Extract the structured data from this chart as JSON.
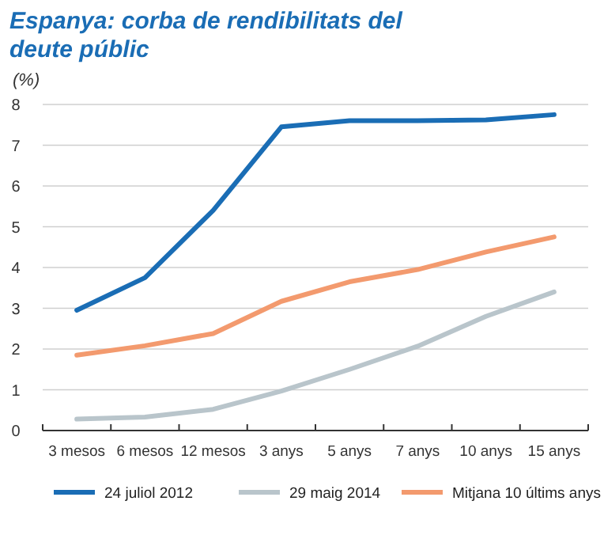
{
  "chart_data": {
    "type": "line",
    "title": "Espanya: corba de rendibilitats del deute públic",
    "ylabel": "(%)",
    "categories": [
      "3 mesos",
      "6 mesos",
      "12 mesos",
      "3 anys",
      "5 anys",
      "7 anys",
      "10 anys",
      "15 anys"
    ],
    "series": [
      {
        "name": "24 juliol 2012",
        "color": "#1a6db5",
        "values": [
          2.95,
          3.75,
          5.4,
          7.45,
          7.6,
          7.6,
          7.62,
          7.75
        ]
      },
      {
        "name": "29 maig 2014",
        "color": "#b9c5cb",
        "values": [
          0.28,
          0.33,
          0.52,
          0.97,
          1.5,
          2.07,
          2.8,
          3.4
        ]
      },
      {
        "name": "Mitjana 10 últims anys",
        "color": "#f39a6e",
        "values": [
          1.85,
          2.08,
          2.38,
          3.17,
          3.65,
          3.95,
          4.38,
          4.75
        ]
      }
    ],
    "ylim": [
      0,
      8
    ],
    "yticks": [
      0,
      1,
      2,
      3,
      4,
      5,
      6,
      7,
      8
    ],
    "grid": "y",
    "legend": "bottom",
    "marker": "none",
    "line_style": "solid"
  }
}
